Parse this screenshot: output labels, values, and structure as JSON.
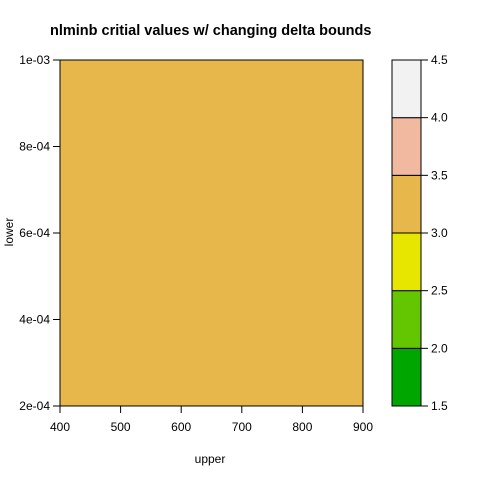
{
  "chart_data": {
    "type": "heatmap",
    "title": "nlminb critial values w/ changing delta bounds",
    "xlabel": "upper",
    "ylabel": "lower",
    "xlim": [
      400,
      900
    ],
    "ylim": [
      0.0002,
      0.001
    ],
    "x_ticks": [
      "400",
      "500",
      "600",
      "700",
      "800",
      "900"
    ],
    "y_ticks": [
      "2e-04",
      "4e-04",
      "6e-04",
      "8e-04",
      "1e-03"
    ],
    "fill": {
      "level_range": [
        3.0,
        3.5
      ],
      "color": "#E8B74C"
    },
    "colorbar": {
      "levels": [
        1.5,
        2.0,
        2.5,
        3.0,
        3.5,
        4.0,
        4.5
      ],
      "tick_labels": [
        "1.5",
        "2.0",
        "2.5",
        "3.0",
        "3.5",
        "4.0",
        "4.5"
      ],
      "colors": [
        "#00A600",
        "#63C600",
        "#E6E600",
        "#E8B74C",
        "#F1BAA0",
        "#F2F2F2"
      ]
    }
  }
}
